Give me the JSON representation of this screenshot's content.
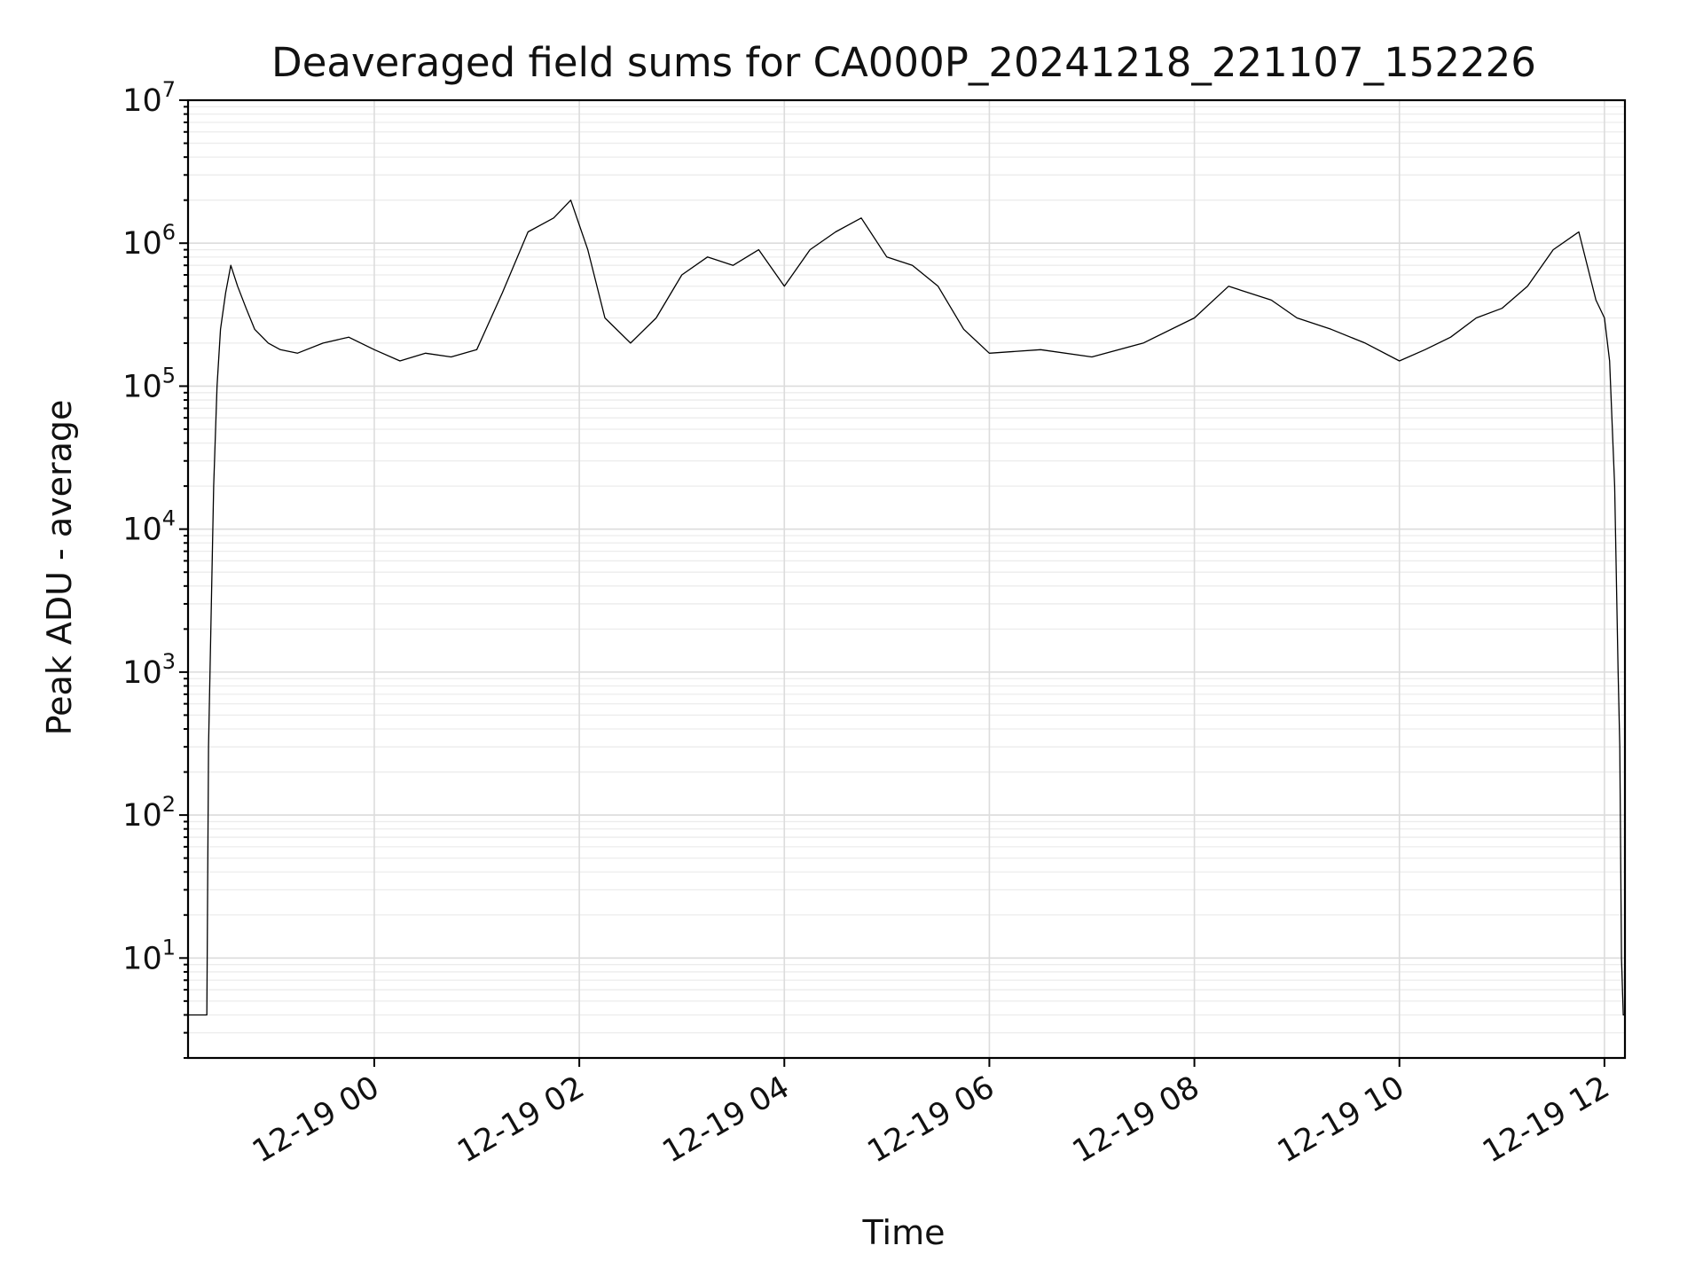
{
  "chart_data": {
    "type": "line",
    "title": "Deaveraged field sums for CA000P_20241218_221107_152226",
    "xlabel": "Time",
    "ylabel": "Peak ADU - average",
    "yscale": "log",
    "ylim": [
      2,
      10000000
    ],
    "xlim": [
      "2024-12-18 22:11",
      "2024-12-19 12:12"
    ],
    "x_ticks": [
      "12-19 00",
      "12-19 02",
      "12-19 04",
      "12-19 06",
      "12-19 08",
      "12-19 10",
      "12-19 12"
    ],
    "x_tick_times": [
      "2024-12-19 00:00",
      "2024-12-19 02:00",
      "2024-12-19 04:00",
      "2024-12-19 06:00",
      "2024-12-19 08:00",
      "2024-12-19 10:00",
      "2024-12-19 12:00"
    ],
    "y_ticks": [
      {
        "base": "10",
        "exp": "1",
        "value": 10
      },
      {
        "base": "10",
        "exp": "2",
        "value": 100
      },
      {
        "base": "10",
        "exp": "3",
        "value": 1000
      },
      {
        "base": "10",
        "exp": "4",
        "value": 10000
      },
      {
        "base": "10",
        "exp": "5",
        "value": 100000
      },
      {
        "base": "10",
        "exp": "6",
        "value": 1000000
      },
      {
        "base": "10",
        "exp": "7",
        "value": 10000000
      }
    ],
    "grid": "both (major and minor)",
    "series": [
      {
        "color": "#000000",
        "x": [
          "2024-12-18 22:11",
          "2024-12-18 22:22",
          "2024-12-18 22:23",
          "2024-12-18 22:26",
          "2024-12-18 22:28",
          "2024-12-18 22:30",
          "2024-12-18 22:33",
          "2024-12-18 22:36",
          "2024-12-18 22:40",
          "2024-12-18 22:45",
          "2024-12-18 22:50",
          "2024-12-18 22:58",
          "2024-12-18 23:05",
          "2024-12-18 23:15",
          "2024-12-18 23:30",
          "2024-12-18 23:45",
          "2024-12-19 00:00",
          "2024-12-19 00:15",
          "2024-12-19 00:30",
          "2024-12-19 00:45",
          "2024-12-19 01:00",
          "2024-12-19 01:15",
          "2024-12-19 01:30",
          "2024-12-19 01:45",
          "2024-12-19 01:55",
          "2024-12-19 02:05",
          "2024-12-19 02:15",
          "2024-12-19 02:30",
          "2024-12-19 02:45",
          "2024-12-19 03:00",
          "2024-12-19 03:15",
          "2024-12-19 03:30",
          "2024-12-19 03:45",
          "2024-12-19 04:00",
          "2024-12-19 04:15",
          "2024-12-19 04:30",
          "2024-12-19 04:45",
          "2024-12-19 05:00",
          "2024-12-19 05:15",
          "2024-12-19 05:30",
          "2024-12-19 05:45",
          "2024-12-19 06:00",
          "2024-12-19 06:30",
          "2024-12-19 07:00",
          "2024-12-19 07:30",
          "2024-12-19 08:00",
          "2024-12-19 08:20",
          "2024-12-19 08:45",
          "2024-12-19 09:00",
          "2024-12-19 09:20",
          "2024-12-19 09:40",
          "2024-12-19 10:00",
          "2024-12-19 10:15",
          "2024-12-19 10:30",
          "2024-12-19 10:45",
          "2024-12-19 11:00",
          "2024-12-19 11:15",
          "2024-12-19 11:30",
          "2024-12-19 11:45",
          "2024-12-19 11:55",
          "2024-12-19 12:00",
          "2024-12-19 12:03",
          "2024-12-19 12:06",
          "2024-12-19 12:08",
          "2024-12-19 12:09",
          "2024-12-19 12:10",
          "2024-12-19 12:11",
          "2024-12-19 12:12"
        ],
        "values": [
          4,
          4,
          300,
          20000,
          100000,
          250000,
          450000,
          700000,
          500000,
          350000,
          250000,
          200000,
          180000,
          170000,
          200000,
          220000,
          180000,
          150000,
          170000,
          160000,
          180000,
          450000,
          1200000,
          1500000,
          2000000,
          900000,
          300000,
          200000,
          300000,
          600000,
          800000,
          700000,
          900000,
          500000,
          900000,
          1200000,
          1500000,
          800000,
          700000,
          500000,
          250000,
          170000,
          180000,
          160000,
          200000,
          300000,
          500000,
          400000,
          300000,
          250000,
          200000,
          150000,
          180000,
          220000,
          300000,
          350000,
          500000,
          900000,
          1200000,
          400000,
          300000,
          150000,
          20000,
          1000,
          300,
          10,
          4,
          4
        ]
      }
    ]
  }
}
